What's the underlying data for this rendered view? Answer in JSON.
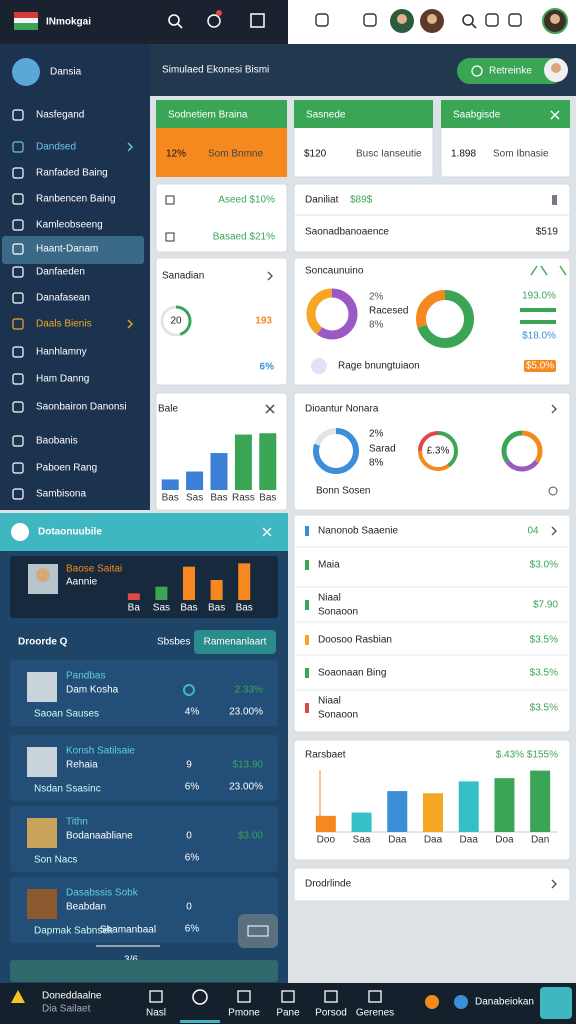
{
  "top_bar": {
    "app_name": "INmokgai"
  },
  "sidebar": {
    "brand": "Dansia",
    "items": [
      "Nasfegand",
      "Dandsed",
      "Ranfaded Baing",
      "Ranbencen Baing",
      "Kamleobseeng",
      "Haant-Danam",
      "Danfaeden",
      "Danafasean",
      "Daals Bienis",
      "Hanhlamny",
      "Ham Danng",
      "Saonbairon Danonsi",
      "Baobanis",
      "Paboen Rang",
      "Sambisona"
    ]
  },
  "header": {
    "title": "Simulaed Ekonesi Bismi",
    "button": "Retreinke"
  },
  "kpi_cards": [
    {
      "title": "Sodnetiem Braina",
      "value": "12%",
      "note": "Som Bnmne"
    },
    {
      "title": "Sasnede",
      "value": "$120",
      "note": "Busc Ianseutie"
    },
    {
      "title": "Saabgisde",
      "value": "1.898",
      "note": "Som Ibnasie"
    }
  ],
  "stat_left": {
    "rows": [
      "Aseed $10%",
      "Basaed $21%"
    ]
  },
  "stat_right": {
    "title": "Daniliat",
    "badge": "$89$",
    "row_label": "Saonadbanoaence",
    "row_value": "$519"
  },
  "donut_card": {
    "title": "Sanadian",
    "center": "20",
    "value": "193",
    "pct": "6%",
    "segments": [
      {
        "value": 45,
        "color": "#3aa655"
      },
      {
        "value": 55,
        "color": "#e1e5ea"
      }
    ]
  },
  "donut_card2": {
    "title": "Soncaunuino",
    "labels": [
      "2%",
      "Racesed",
      "8%"
    ],
    "right_values": [
      "193.0%",
      "$18.0%"
    ],
    "footer": "Rage bnungtuiaon",
    "chip": "$5.0%",
    "donuts": [
      [
        {
          "value": 60,
          "color": "#9b59c6"
        },
        {
          "value": 40,
          "color": "#f5a623"
        }
      ],
      [
        {
          "value": 70,
          "color": "#3aa655"
        },
        {
          "value": 30,
          "color": "#f5891f"
        }
      ]
    ]
  },
  "bar_card": {
    "title": "Bale",
    "labels": [
      "Bas",
      "Sas",
      "Bas",
      "Rass",
      "Bas"
    ],
    "values": [
      8,
      14,
      28,
      42,
      43
    ],
    "colors": [
      "#3b7fd6",
      "#3b7fd6",
      "#3b7fd6",
      "#3aa655",
      "#3aa655"
    ],
    "ylim": [
      0,
      50
    ]
  },
  "donut_card3": {
    "title": "Dioantur Nonara",
    "labels": [
      "2%",
      "Sarad",
      "8%",
      "£.3%"
    ],
    "footer": "Bonn Sosen",
    "donuts": [
      [
        {
          "value": 80,
          "color": "#3b8fd6"
        },
        {
          "value": 20,
          "color": "#e1e5ea"
        }
      ],
      [
        {
          "value": 40,
          "color": "#3aa655"
        },
        {
          "value": 35,
          "color": "#f5891f"
        },
        {
          "value": 25,
          "color": "#e04848"
        }
      ],
      [
        {
          "value": 35,
          "color": "#f5891f"
        },
        {
          "value": 30,
          "color": "#9b59c6"
        },
        {
          "value": 35,
          "color": "#3aa655"
        }
      ]
    ]
  },
  "left_panel": {
    "title": "Dotaonuubile",
    "profile": {
      "name": "Baose Saitai",
      "sub": "Aannie"
    },
    "mini_chart": {
      "labels": [
        "Ba",
        "Sas",
        "Bas",
        "Bas",
        "Bas"
      ],
      "values": [
        2,
        4,
        10,
        6,
        11
      ],
      "colors": [
        "#e04848",
        "#3aa655",
        "#f5891f",
        "#f5891f",
        "#f5891f"
      ],
      "ylim": [
        0,
        12
      ]
    },
    "section": "Droorde Q",
    "tab": "Sbsbes",
    "button": "Ramenanlaart",
    "items": [
      {
        "name": "Pandbas",
        "sub": "Dam Kosha",
        "top": "2.33%",
        "pct": "4%",
        "bottom": "23.00%",
        "foot": "Saoan Sauses"
      },
      {
        "name": "Konsh Satilsaie",
        "sub": "Rehaia",
        "mark": "9",
        "top": "$13.90",
        "pct": "6%",
        "bottom": "23.00%",
        "foot": "Nsdan Ssasinc"
      },
      {
        "name": "Tithn",
        "sub": "Bodanaabliane",
        "mark": "0",
        "top": "$3.00",
        "pct": "6%",
        "foot": "Son Nacs"
      },
      {
        "name": "Dasabssis Sobk",
        "sub": "Beabdan",
        "mark": "0",
        "pct": "6%",
        "foot": "Dapmak Sabnsek"
      }
    ],
    "footer": "Shamanbaal",
    "pager": "3/6"
  },
  "list_card": {
    "title": "Nanonob Saaenie",
    "badge": "04",
    "rows": [
      {
        "label": "Maia",
        "value": "$3.0%"
      },
      {
        "label": "Niaal",
        "sub": "Sonaoon",
        "value": "$7.90"
      },
      {
        "label": "Doosoo Rasbian",
        "value": "$3.5%"
      },
      {
        "label": "Soaonaan Bing",
        "value": "$3.5%"
      },
      {
        "label": "Niaal",
        "sub": "Sonaoon",
        "value": "$3.5%"
      }
    ]
  },
  "bar_card2": {
    "title": "Rarsbaet",
    "stats": "$.43% $155%",
    "labels": [
      "Doo",
      "Saa",
      "Daa",
      "Daa",
      "Daa",
      "Doa",
      "Dan"
    ],
    "values": [
      15,
      18,
      38,
      36,
      47,
      50,
      57
    ],
    "colors": [
      "#f5891f",
      "#35c0c8",
      "#3b8fd6",
      "#f5a623",
      "#35c0c8",
      "#3aa655",
      "#3aa655"
    ],
    "ylim": [
      0,
      65
    ]
  },
  "link_card": {
    "title": "Drodrlinde"
  },
  "bottom_nav": {
    "left": "Doneddaalne",
    "left_sub": "Dia Sailaet",
    "items": [
      "Nasl",
      "Pmone",
      "Pane",
      "Porsod",
      "Gerenes"
    ],
    "right": "Danabeiokan"
  }
}
